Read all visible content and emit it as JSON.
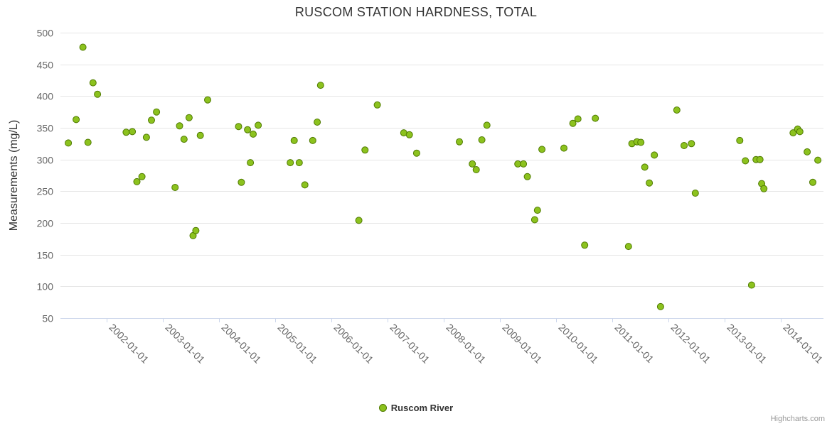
{
  "title": "RUSCOM STATION HARDNESS, TOTAL",
  "y_axis": {
    "title": "Measurements (mg/L)",
    "min": 50,
    "max": 500,
    "tick_interval": 50,
    "tick_labels": [
      "50",
      "100",
      "150",
      "200",
      "250",
      "300",
      "350",
      "400",
      "450",
      "500"
    ]
  },
  "x_axis": {
    "labels": [
      "2002-01-01",
      "2003-01-01",
      "2004-01-01",
      "2005-01-01",
      "2006-01-01",
      "2007-01-01",
      "2008-01-01",
      "2009-01-01",
      "2010-01-01",
      "2011-01-01",
      "2012-01-01",
      "2013-01-01",
      "2014-01-01"
    ]
  },
  "legend": {
    "label": "Ruscom River"
  },
  "credits": "Highcharts.com",
  "colors": {
    "marker_fill": "#8CC21E",
    "marker_stroke": "#4F7A00",
    "grid": "#E6E6E6",
    "axis_line": "#CCD6EB",
    "tick_text": "#666666",
    "title_text": "#333333"
  },
  "chart_data": {
    "type": "scatter",
    "title": "RUSCOM STATION HARDNESS, TOTAL",
    "xlabel": "",
    "ylabel": "Measurements (mg/L)",
    "xlim": [
      2001.18,
      2014.76
    ],
    "ylim": [
      50,
      500
    ],
    "grid": "horizontal",
    "legend_position": "bottom-center",
    "series": [
      {
        "name": "Ruscom River",
        "points": [
          [
            2001.32,
            326
          ],
          [
            2001.46,
            363
          ],
          [
            2001.58,
            477
          ],
          [
            2001.67,
            327
          ],
          [
            2001.76,
            421
          ],
          [
            2001.84,
            403
          ],
          [
            2002.35,
            343
          ],
          [
            2002.46,
            344
          ],
          [
            2002.54,
            265
          ],
          [
            2002.63,
            273
          ],
          [
            2002.71,
            335
          ],
          [
            2002.8,
            362
          ],
          [
            2002.89,
            375
          ],
          [
            2003.22,
            256
          ],
          [
            2003.3,
            353
          ],
          [
            2003.38,
            332
          ],
          [
            2003.47,
            366
          ],
          [
            2003.54,
            180
          ],
          [
            2003.59,
            188
          ],
          [
            2003.67,
            338
          ],
          [
            2003.8,
            394
          ],
          [
            2004.35,
            352
          ],
          [
            2004.4,
            264
          ],
          [
            2004.51,
            347
          ],
          [
            2004.56,
            295
          ],
          [
            2004.61,
            340
          ],
          [
            2004.7,
            354
          ],
          [
            2005.27,
            295
          ],
          [
            2005.34,
            330
          ],
          [
            2005.43,
            295
          ],
          [
            2005.53,
            260
          ],
          [
            2005.67,
            330
          ],
          [
            2005.75,
            359
          ],
          [
            2005.81,
            417
          ],
          [
            2006.49,
            204
          ],
          [
            2006.6,
            315
          ],
          [
            2006.82,
            386
          ],
          [
            2007.29,
            342
          ],
          [
            2007.39,
            339
          ],
          [
            2007.52,
            310
          ],
          [
            2008.28,
            328
          ],
          [
            2008.51,
            293
          ],
          [
            2008.58,
            284
          ],
          [
            2008.68,
            331
          ],
          [
            2008.77,
            354
          ],
          [
            2009.32,
            293
          ],
          [
            2009.42,
            293
          ],
          [
            2009.49,
            273
          ],
          [
            2009.62,
            205
          ],
          [
            2009.67,
            220
          ],
          [
            2009.75,
            316
          ],
          [
            2010.14,
            318
          ],
          [
            2010.3,
            357
          ],
          [
            2010.39,
            364
          ],
          [
            2010.51,
            165
          ],
          [
            2010.7,
            365
          ],
          [
            2011.29,
            163
          ],
          [
            2011.35,
            325
          ],
          [
            2011.44,
            328
          ],
          [
            2011.51,
            327
          ],
          [
            2011.58,
            288
          ],
          [
            2011.66,
            263
          ],
          [
            2011.75,
            307
          ],
          [
            2011.86,
            68
          ],
          [
            2012.15,
            378
          ],
          [
            2012.28,
            322
          ],
          [
            2012.41,
            325
          ],
          [
            2012.48,
            247
          ],
          [
            2013.27,
            330
          ],
          [
            2013.37,
            298
          ],
          [
            2013.48,
            102
          ],
          [
            2013.56,
            300
          ],
          [
            2013.63,
            300
          ],
          [
            2013.66,
            262
          ],
          [
            2013.7,
            254
          ],
          [
            2014.22,
            342
          ],
          [
            2014.3,
            348
          ],
          [
            2014.34,
            344
          ],
          [
            2014.47,
            312
          ],
          [
            2014.57,
            264
          ],
          [
            2014.66,
            299
          ]
        ]
      }
    ]
  }
}
